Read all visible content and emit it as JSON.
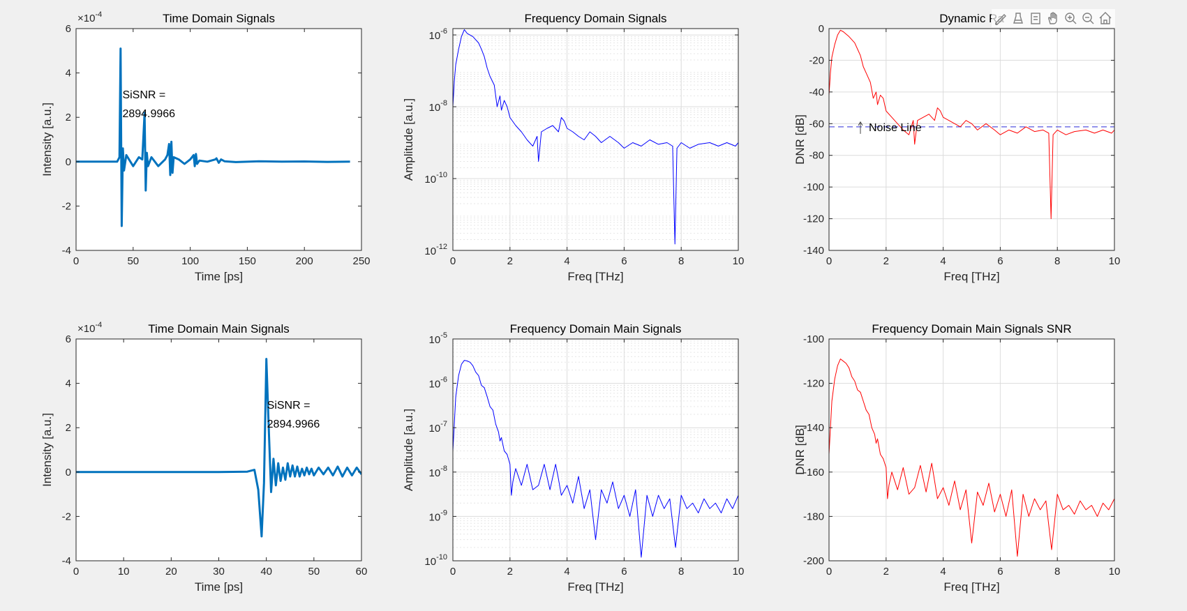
{
  "figure": {
    "background": "#f0f0f0"
  },
  "toolbar": {
    "icons": [
      "brush-icon",
      "data-tips-icon",
      "legend-icon",
      "pan-icon",
      "zoom-in-icon",
      "zoom-out-icon",
      "home-icon"
    ]
  },
  "chart_data": [
    {
      "id": "p1",
      "type": "line",
      "title": "Time Domain Signals",
      "xlabel": "Time [ps]",
      "ylabel": "Intensity [a.u.]",
      "xlim": [
        0,
        250
      ],
      "ylim": [
        -4,
        6
      ],
      "yscale": "linear",
      "yexponent": "-4",
      "xticks": [
        0,
        50,
        100,
        150,
        200,
        250
      ],
      "yticks": [
        -4,
        -2,
        0,
        2,
        4,
        6
      ],
      "grid": false,
      "color": "#0072bd",
      "line_width": "thick",
      "x": [
        0,
        36,
        38.0,
        39.0,
        40.0,
        41.0,
        42.0,
        44,
        50,
        55,
        58,
        60.0,
        61.0,
        62.0,
        63.0,
        66,
        72,
        78,
        80,
        81.5,
        82.5,
        83.5,
        84.5,
        85.5,
        90,
        95,
        100,
        103,
        104,
        105,
        106,
        108,
        115,
        122,
        123,
        125,
        127,
        130,
        140,
        160,
        180,
        200,
        220,
        240
      ],
      "y": [
        0,
        0,
        0.2,
        5.1,
        -2.9,
        0.6,
        -0.4,
        0.3,
        -0.2,
        0.2,
        0.1,
        2.2,
        -1.3,
        0.4,
        -0.2,
        0.2,
        -0.2,
        0.1,
        0.3,
        0.8,
        -0.6,
        0.9,
        -0.5,
        0.2,
        0.1,
        -0.1,
        0.1,
        0.3,
        -0.2,
        0.35,
        -0.1,
        0.05,
        0,
        0.1,
        0.15,
        -0.05,
        0.1,
        0.02,
        -0.02,
        0.02,
        0,
        0.01,
        -0.01,
        0
      ],
      "annotation": {
        "lines": [
          "SiSNR =",
          "2894.9966"
        ],
        "x": 40,
        "y": 2.1
      }
    },
    {
      "id": "p2",
      "type": "line",
      "title": "Frequency Domain Signals",
      "xlabel": "Freq [THz]",
      "ylabel": "Amplitude [a.u.]",
      "xlim": [
        0,
        10
      ],
      "ylim": [
        1e-12,
        1.5e-06
      ],
      "yscale": "log",
      "xticks": [
        0,
        2,
        4,
        6,
        8,
        10
      ],
      "ytick_exponents": [
        -12,
        -10,
        -8,
        -6
      ],
      "grid": true,
      "color": "#0000ff",
      "line_width": "thin",
      "x": [
        0,
        0.05,
        0.1,
        0.2,
        0.3,
        0.4,
        0.5,
        0.7,
        0.9,
        1.0,
        1.1,
        1.2,
        1.3,
        1.45,
        1.55,
        1.65,
        1.7,
        1.8,
        1.9,
        2.0,
        2.2,
        2.4,
        2.6,
        2.8,
        2.95,
        3.0,
        3.1,
        3.3,
        3.5,
        3.7,
        3.8,
        3.9,
        4.0,
        4.2,
        4.4,
        4.6,
        4.8,
        5.0,
        5.2,
        5.5,
        5.8,
        6.0,
        6.3,
        6.6,
        6.9,
        7.2,
        7.5,
        7.7,
        7.78,
        7.85,
        8.0,
        8.3,
        8.6,
        9.0,
        9.3,
        9.6,
        9.9,
        10.0
      ],
      "y": [
        1e-08,
        5e-08,
        1.5e-07,
        4e-07,
        9e-07,
        1.4e-06,
        1.1e-06,
        9e-07,
        6e-07,
        4e-07,
        2.5e-07,
        1.2e-07,
        7e-08,
        4e-08,
        1e-08,
        2e-08,
        8e-09,
        1.5e-08,
        1e-08,
        5e-09,
        3e-09,
        2e-09,
        1.2e-09,
        8e-10,
        1.5e-09,
        3e-10,
        2e-09,
        2.5e-09,
        3e-09,
        2e-09,
        5e-09,
        4e-09,
        2.5e-09,
        2e-09,
        1.5e-09,
        1.2e-09,
        2e-09,
        1.5e-09,
        1e-09,
        1.5e-09,
        1e-09,
        7e-10,
        1e-09,
        8e-10,
        1.2e-09,
        9e-10,
        1e-09,
        8e-10,
        1.5e-12,
        7e-10,
        1e-09,
        7e-10,
        9e-10,
        1e-09,
        8e-10,
        1e-09,
        8e-10,
        1e-09
      ]
    },
    {
      "id": "p3",
      "type": "line",
      "title": "Dynamic Ra",
      "xlabel": "Freq [THz]",
      "ylabel": "DNR [dB]",
      "xlim": [
        0,
        10
      ],
      "ylim": [
        -140,
        0
      ],
      "yscale": "linear",
      "xticks": [
        0,
        2,
        4,
        6,
        8,
        10
      ],
      "yticks": [
        -140,
        -120,
        -100,
        -80,
        -60,
        -40,
        -20,
        0
      ],
      "grid": true,
      "color": "#ff0000",
      "line_width": "thin",
      "x": [
        0,
        0.05,
        0.1,
        0.2,
        0.3,
        0.4,
        0.5,
        0.7,
        0.9,
        1.0,
        1.1,
        1.2,
        1.3,
        1.45,
        1.55,
        1.65,
        1.7,
        1.8,
        1.9,
        2.0,
        2.2,
        2.4,
        2.6,
        2.8,
        2.95,
        3.0,
        3.1,
        3.3,
        3.5,
        3.7,
        3.8,
        3.9,
        4.0,
        4.2,
        4.4,
        4.6,
        4.8,
        5.0,
        5.2,
        5.5,
        5.8,
        6.0,
        6.3,
        6.6,
        6.9,
        7.2,
        7.5,
        7.7,
        7.78,
        7.85,
        8.0,
        8.3,
        8.6,
        9.0,
        9.3,
        9.6,
        9.9,
        10.0
      ],
      "y": [
        -42,
        -28,
        -18,
        -10,
        -4,
        -1,
        -2,
        -5,
        -9,
        -13,
        -17,
        -24,
        -28,
        -34,
        -44,
        -40,
        -48,
        -42,
        -44,
        -52,
        -56,
        -60,
        -64,
        -67,
        -58,
        -73,
        -58,
        -56,
        -54,
        -58,
        -50,
        -52,
        -56,
        -58,
        -60,
        -62,
        -58,
        -60,
        -64,
        -60,
        -64,
        -67,
        -64,
        -66,
        -62,
        -65,
        -64,
        -66,
        -120,
        -67,
        -64,
        -67,
        -65,
        -64,
        -66,
        -64,
        -66,
        -64
      ],
      "noise_line": {
        "label": "Noise Line",
        "y": -62
      }
    },
    {
      "id": "p4",
      "type": "line",
      "title": "Time Domain Main Signals",
      "xlabel": "Time [ps]",
      "ylabel": "Intensity [a.u.]",
      "xlim": [
        0,
        60
      ],
      "ylim": [
        -4,
        6
      ],
      "yscale": "linear",
      "yexponent": "-4",
      "xticks": [
        0,
        10,
        20,
        30,
        40,
        50,
        60
      ],
      "yticks": [
        -4,
        -2,
        0,
        2,
        4,
        6
      ],
      "grid": false,
      "color": "#0072bd",
      "line_width": "thick",
      "x": [
        0,
        10,
        20,
        30,
        36,
        37.5,
        38.3,
        39.0,
        39.5,
        40.0,
        40.5,
        41.0,
        41.5,
        42.0,
        42.5,
        43.0,
        43.5,
        44.0,
        44.5,
        45.0,
        45.5,
        46.0,
        46.5,
        47.0,
        47.5,
        48.0,
        48.5,
        49.0,
        49.5,
        50.0,
        51,
        52,
        53,
        54,
        55,
        56,
        57,
        58,
        59,
        60
      ],
      "y": [
        0,
        0,
        0,
        0,
        0.02,
        0.1,
        -0.8,
        -2.9,
        -0.5,
        5.1,
        2.0,
        -0.9,
        0.6,
        -0.6,
        0.4,
        -0.4,
        0.2,
        -0.35,
        0.4,
        -0.2,
        0.3,
        -0.2,
        0.25,
        -0.2,
        0.15,
        -0.15,
        0.2,
        -0.1,
        0.15,
        -0.15,
        0.2,
        -0.1,
        0.2,
        -0.15,
        0.25,
        -0.2,
        0.2,
        -0.15,
        0.2,
        -0.1
      ],
      "annotation": {
        "lines": [
          "SiSNR =",
          "2894.9966"
        ],
        "x": 40,
        "y": 2.1
      }
    },
    {
      "id": "p5",
      "type": "line",
      "title": "Frequency Domain Main Signals",
      "xlabel": "Freq [THz]",
      "ylabel": "Amplitude [a.u.]",
      "xlim": [
        0,
        10
      ],
      "ylim": [
        1e-10,
        1e-05
      ],
      "yscale": "log",
      "xticks": [
        0,
        2,
        4,
        6,
        8,
        10
      ],
      "ytick_exponents": [
        -10,
        -9,
        -8,
        -7,
        -6,
        -5
      ],
      "grid": true,
      "color": "#0000ff",
      "line_width": "thin",
      "x": [
        0,
        0.1,
        0.2,
        0.3,
        0.4,
        0.5,
        0.6,
        0.7,
        0.8,
        0.9,
        1.0,
        1.1,
        1.2,
        1.3,
        1.4,
        1.5,
        1.6,
        1.65,
        1.7,
        1.8,
        1.9,
        2.0,
        2.05,
        2.1,
        2.2,
        2.4,
        2.6,
        2.8,
        3.0,
        3.2,
        3.4,
        3.6,
        3.7,
        3.8,
        4.0,
        4.2,
        4.4,
        4.6,
        4.8,
        5.0,
        5.2,
        5.4,
        5.6,
        5.8,
        6.0,
        6.2,
        6.4,
        6.6,
        6.8,
        7.0,
        7.2,
        7.4,
        7.6,
        7.8,
        8.0,
        8.2,
        8.4,
        8.6,
        8.8,
        9.0,
        9.2,
        9.4,
        9.6,
        9.8,
        10.0
      ],
      "y": [
        3e-08,
        5e-07,
        1.5e-06,
        2.7e-06,
        3.3e-06,
        3.2e-06,
        3e-06,
        2.5e-06,
        1.8e-06,
        1.5e-06,
        9e-07,
        8e-07,
        5e-07,
        3e-07,
        2.5e-07,
        1.2e-07,
        8e-08,
        5e-08,
        6e-08,
        3e-08,
        2.5e-08,
        1.5e-08,
        3e-09,
        6e-09,
        1.2e-08,
        5e-09,
        1.5e-08,
        4e-09,
        5e-09,
        1.5e-08,
        4e-09,
        1.5e-08,
        7e-09,
        3e-09,
        5e-09,
        2e-09,
        8e-09,
        1.5e-09,
        4e-09,
        3e-10,
        4e-09,
        2e-09,
        6e-09,
        1.5e-09,
        3e-09,
        1e-09,
        4e-09,
        1.2e-10,
        3e-09,
        1e-09,
        3e-09,
        1.5e-09,
        2.5e-09,
        2e-10,
        3e-09,
        1.5e-09,
        2e-09,
        1.2e-09,
        2.5e-09,
        1.5e-09,
        2e-09,
        1.2e-09,
        2.5e-09,
        1.5e-09,
        3e-09
      ]
    },
    {
      "id": "p6",
      "type": "line",
      "title": "Frequency Domain Main Signals SNR",
      "xlabel": "Freq [THz]",
      "ylabel": "DNR [dB]",
      "xlim": [
        0,
        10
      ],
      "ylim": [
        -200,
        -100
      ],
      "yscale": "linear",
      "xticks": [
        0,
        2,
        4,
        6,
        8,
        10
      ],
      "yticks": [
        -200,
        -180,
        -160,
        -140,
        -120,
        -100
      ],
      "grid": true,
      "color": "#ff0000",
      "line_width": "thin",
      "x": [
        0,
        0.1,
        0.2,
        0.3,
        0.4,
        0.5,
        0.6,
        0.7,
        0.8,
        0.9,
        1.0,
        1.1,
        1.2,
        1.3,
        1.4,
        1.5,
        1.6,
        1.65,
        1.7,
        1.8,
        1.9,
        2.0,
        2.05,
        2.1,
        2.2,
        2.4,
        2.6,
        2.8,
        3.0,
        3.2,
        3.4,
        3.6,
        3.7,
        3.8,
        4.0,
        4.2,
        4.4,
        4.6,
        4.8,
        5.0,
        5.2,
        5.4,
        5.6,
        5.8,
        6.0,
        6.2,
        6.4,
        6.6,
        6.8,
        7.0,
        7.2,
        7.4,
        7.6,
        7.8,
        8.0,
        8.2,
        8.4,
        8.6,
        8.8,
        9.0,
        9.2,
        9.4,
        9.6,
        9.8,
        10.0
      ],
      "y": [
        -152,
        -128,
        -118,
        -112,
        -109,
        -110,
        -111,
        -113,
        -117,
        -119,
        -123,
        -124,
        -128,
        -132,
        -134,
        -140,
        -143,
        -147,
        -145,
        -152,
        -154,
        -158,
        -172,
        -166,
        -160,
        -168,
        -158,
        -170,
        -167,
        -157,
        -169,
        -156,
        -164,
        -172,
        -167,
        -175,
        -164,
        -177,
        -168,
        -192,
        -169,
        -175,
        -165,
        -178,
        -170,
        -180,
        -168,
        -198,
        -170,
        -180,
        -172,
        -177,
        -173,
        -195,
        -170,
        -177,
        -175,
        -179,
        -173,
        -177,
        -175,
        -180,
        -174,
        -177,
        -172
      ]
    }
  ]
}
